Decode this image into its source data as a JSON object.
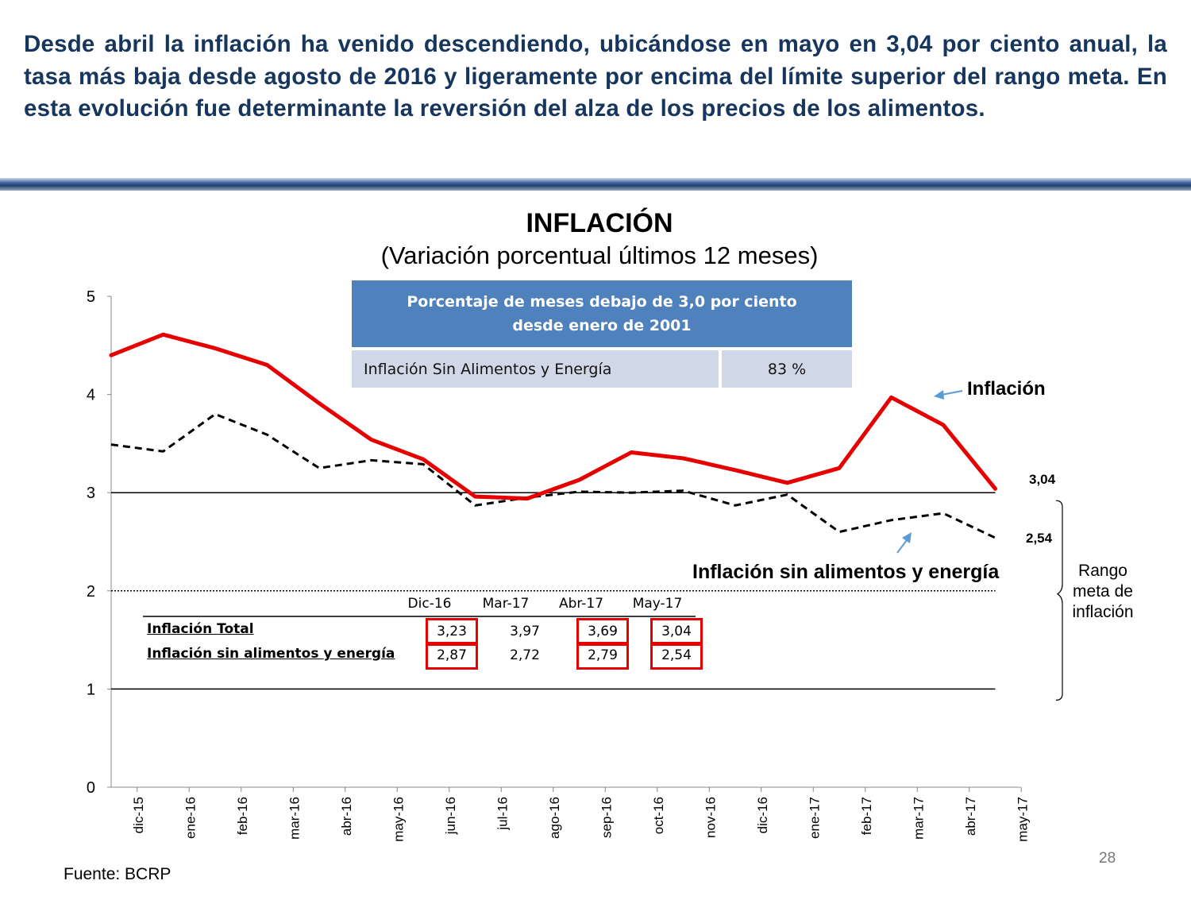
{
  "headline": "Desde abril la inflación ha venido descendiendo, ubicándose en mayo en 3,04 por ciento anual, la tasa más baja desde agosto de 2016 y ligeramente por encima del límite superior del rango meta. En esta evolución fue determinante la reversión del alza de los precios de los alimentos.",
  "colors": {
    "headline": "#17365D",
    "inflation": "#E60000",
    "core": "#000000",
    "table_header": "#4F81BD",
    "table_row": "#D0D8E8"
  },
  "info_table": {
    "header": "Porcentaje de meses debajo de 3,0 por ciento desde enero de 2001",
    "row_label": "Inflación Sin Alimentos y Energía",
    "row_value": "83 %"
  },
  "annotations": {
    "inflation_label": "Inflación",
    "core_label": "Inflación sin alimentos y energía",
    "last_inflation": "3,04",
    "last_core": "2,54",
    "range_label": "Rango meta de inflación"
  },
  "summary_table": {
    "columns": [
      "Dic-16",
      "Mar-17",
      "Abr-17",
      "May-17"
    ],
    "rows": [
      {
        "label": "Inflación Total",
        "values": [
          "3,23",
          "3,97",
          "3,69",
          "3,04"
        ]
      },
      {
        "label": "Inflación sin alimentos y energía",
        "values": [
          "2,87",
          "2,72",
          "2,79",
          "2,54"
        ]
      }
    ]
  },
  "chart_data": {
    "type": "line",
    "title": "INFLACIÓN",
    "subtitle": "(Variación porcentual últimos 12 meses)",
    "x": [
      "dic-15",
      "ene-16",
      "feb-16",
      "mar-16",
      "abr-16",
      "may-16",
      "jun-16",
      "jul-16",
      "ago-16",
      "sep-16",
      "oct-16",
      "nov-16",
      "dic-16",
      "ene-17",
      "feb-17",
      "mar-17",
      "abr-17",
      "may-17"
    ],
    "ylim": [
      0,
      5
    ],
    "yticks": [
      0,
      1,
      2,
      3,
      4,
      5
    ],
    "reference_lines": [
      {
        "y": 3,
        "style": "solid"
      },
      {
        "y": 1,
        "style": "solid"
      },
      {
        "y": 2,
        "style": "dotted"
      }
    ],
    "series": [
      {
        "name": "Inflación",
        "style": "solid",
        "values": [
          4.4,
          4.61,
          4.47,
          4.3,
          3.91,
          3.54,
          3.34,
          2.96,
          2.94,
          3.13,
          3.41,
          3.35,
          3.23,
          3.1,
          3.25,
          3.97,
          3.69,
          3.04
        ]
      },
      {
        "name": "Inflación sin alimentos y energía",
        "style": "dashed",
        "values": [
          3.49,
          3.42,
          3.8,
          3.59,
          3.25,
          3.33,
          3.29,
          2.87,
          2.95,
          3.01,
          3.0,
          3.02,
          2.87,
          2.98,
          2.6,
          2.72,
          2.79,
          2.54
        ]
      }
    ]
  },
  "source": "Fuente: BCRP",
  "page_number": "28"
}
